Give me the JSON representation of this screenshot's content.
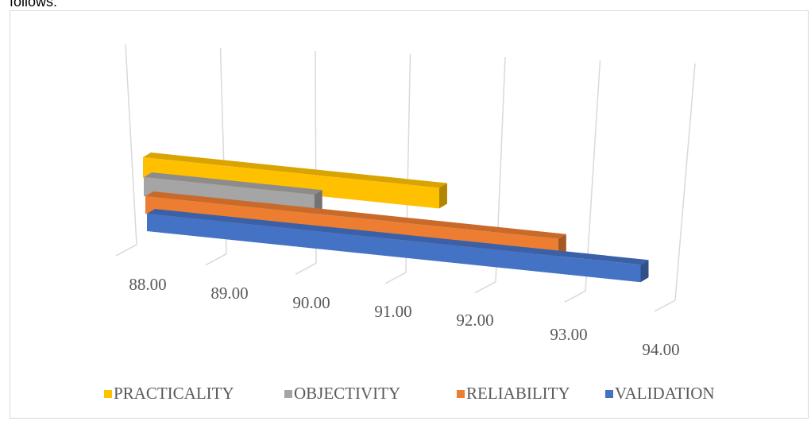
{
  "header": {
    "text": "follows:"
  },
  "chart_data": {
    "type": "bar",
    "orientation": "horizontal",
    "style": "3d-perspective",
    "categories": [
      ""
    ],
    "series": [
      {
        "name": "PRACTICALITY",
        "values": [
          91.3
        ],
        "color": "#FFC000"
      },
      {
        "name": "OBJECTIVITY",
        "values": [
          89.9
        ],
        "color": "#A5A5A5"
      },
      {
        "name": "RELIABILITY",
        "values": [
          92.6
        ],
        "color": "#ED7D31"
      },
      {
        "name": "VALIDATION",
        "values": [
          93.5
        ],
        "color": "#4472C4"
      }
    ],
    "xlim": [
      88,
      94
    ],
    "x_ticks": [
      "88.00",
      "89.00",
      "90.00",
      "91.00",
      "92.00",
      "93.00",
      "94.00"
    ],
    "grid": true,
    "legend_position": "bottom"
  }
}
